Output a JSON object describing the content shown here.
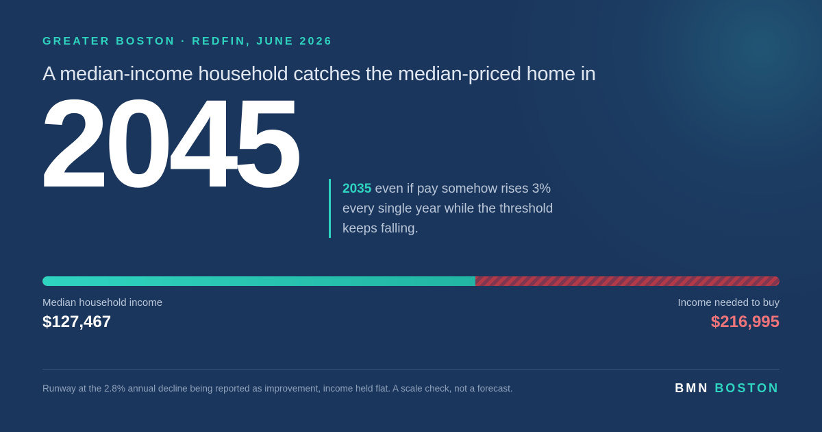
{
  "kicker": "GREATER BOSTON · REDFIN, JUNE 2026",
  "headline": "A median-income household catches the median-priced home in",
  "big_year": "2045",
  "aside": {
    "highlight": "2035",
    "text": " even if pay somehow rises 3% every single year while the threshold keeps falling."
  },
  "progress": {
    "fraction": 0.5874,
    "fill_color": "#2fd4c0",
    "gap_color": "#b23a48"
  },
  "income": {
    "label": "Median household income",
    "value": "$127,467"
  },
  "needed": {
    "label": "Income needed to buy",
    "value": "$216,995"
  },
  "footnote": "Runway at the 2.8% annual decline being reported as improvement, income held flat. A scale check, not a forecast.",
  "brand": {
    "part1": "BMN",
    "part2": "BOSTON"
  }
}
